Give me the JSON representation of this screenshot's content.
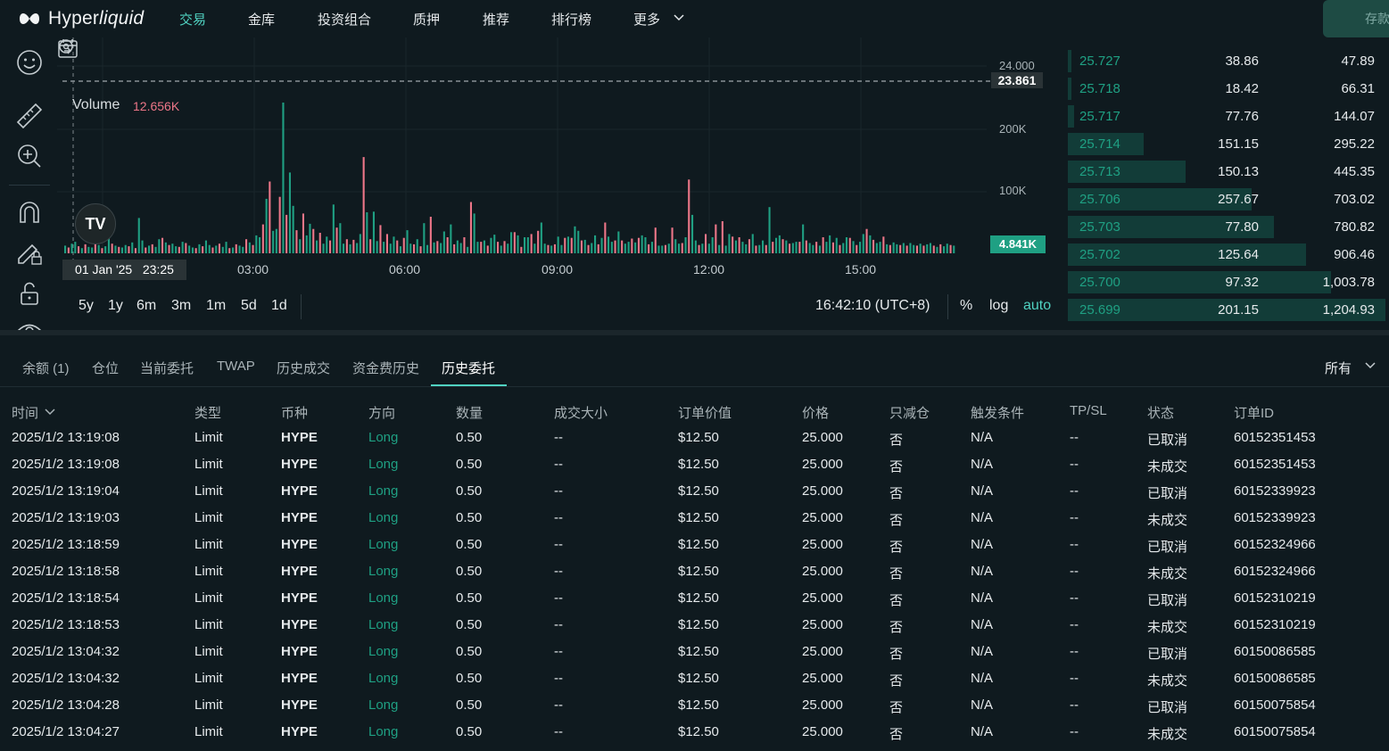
{
  "nav": {
    "logo_main": "Hyper",
    "logo_italic": "liquid",
    "items": [
      {
        "label": "交易",
        "active": true
      },
      {
        "label": "金库"
      },
      {
        "label": "投资组合"
      },
      {
        "label": "质押"
      },
      {
        "label": "推荐"
      },
      {
        "label": "排行榜"
      },
      {
        "label": "更多"
      }
    ],
    "deposit_label": "存款"
  },
  "toolbar": {
    "icons": [
      "smiley-icon",
      "ruler-icon",
      "zoom-in-icon",
      "magnet-icon",
      "pencil-lock-icon",
      "unlock-icon",
      "eye-icon"
    ]
  },
  "chart": {
    "volume_label": "Volume",
    "volume_value": "12.656K",
    "current_price": "23.861",
    "price_top_label": "24.000",
    "y_labels": [
      "200K",
      "100K"
    ],
    "current_volume": "4.841K",
    "x_labels": [
      "03:00",
      "06:00",
      "09:00",
      "12:00",
      "15:00"
    ],
    "crosshair_date": "01 Jan '25",
    "crosshair_time": "23:25",
    "ranges": [
      "5y",
      "1y",
      "6m",
      "3m",
      "1m",
      "5d",
      "1d"
    ],
    "clock": "16:42:10 (UTC+8)",
    "options": {
      "percent": "%",
      "log": "log",
      "auto": "auto"
    },
    "colors": {
      "up": "#1fa083",
      "down": "#ed7688"
    }
  },
  "chart_data": {
    "type": "bar",
    "title": "",
    "ylabel": "",
    "ylim": [
      0,
      240000
    ],
    "x_ticks": [
      "03:00",
      "06:00",
      "09:00",
      "12:00",
      "15:00"
    ],
    "series": [
      {
        "values": [
          12000,
          9000,
          15000,
          18000,
          11000,
          8000,
          14000,
          10000,
          9000,
          22000,
          13000,
          8000,
          11000,
          63000,
          15000,
          12000,
          10000,
          9000,
          13000,
          11000,
          17000,
          8000,
          55000,
          20000,
          9000,
          12000,
          14000,
          10000,
          22000,
          24000,
          17000,
          13000,
          15000,
          11000,
          10000,
          18000,
          16000,
          12000,
          9000,
          8000,
          14000,
          11000,
          20000,
          13000,
          9000,
          12000,
          15000,
          10000,
          18000,
          8000,
          9000,
          14000,
          12000,
          10000,
          22000,
          17000,
          13000,
          28000,
          25000,
          45000,
          85000,
          112000,
          35000,
          38000,
          88000,
          235000,
          60000,
          126000,
          74000,
          36000,
          22000,
          62000,
          28000,
          46000,
          38000,
          20000,
          32000,
          15000,
          26000,
          20000,
          76000,
          40000,
          47000,
          15000,
          22000,
          14000,
          21000,
          16000,
          30000,
          150000,
          64000,
          22000,
          65000,
          19000,
          44000,
          18000,
          30000,
          15000,
          26000,
          20000,
          11000,
          24000,
          36000,
          15000,
          14000,
          22000,
          11000,
          47000,
          13000,
          57000,
          17000,
          19000,
          16000,
          34000,
          25000,
          45000,
          14000,
          20000,
          16000,
          25000,
          10000,
          80000,
          62000,
          18000,
          18000,
          20000,
          12000,
          24000,
          29000,
          18000,
          12000,
          19000,
          15000,
          33000,
          33000,
          28000,
          10000,
          25000,
          25000,
          30000,
          15000,
          35000,
          48000,
          15000,
          13000,
          12000,
          14000,
          26000,
          13000,
          24000,
          26000,
          24000,
          42000,
          35000,
          20000,
          21000,
          13000,
          16000,
          28000,
          14000,
          24000,
          48000,
          26000,
          18000,
          20000,
          34000,
          20000,
          15000,
          18000,
          23000,
          17000,
          24000,
          28000,
          25000,
          14000,
          18000,
          40000,
          12000,
          12000,
          13000,
          15000,
          40000,
          22000,
          15000,
          16000,
          25000,
          115000,
          60000,
          20000,
          13000,
          15000,
          30000,
          15000,
          25000,
          45000,
          13000,
          50000,
          12000,
          30000,
          26000,
          20000,
          25000,
          18000,
          14000,
          22000,
          30000,
          12000,
          13000,
          20000,
          13000,
          72000,
          18000,
          24000,
          28000,
          22000,
          20000,
          15000,
          16000,
          18000,
          18000,
          45000,
          20000,
          16000,
          13000,
          18000,
          12000,
          25000,
          18000,
          28000,
          17000,
          24000,
          13000,
          16000,
          25000,
          24000,
          19000,
          13000,
          18000,
          30000,
          38000,
          28000,
          21000,
          16000,
          18000,
          26000,
          14000,
          13000,
          17000,
          14000,
          13000,
          16000,
          12000,
          16000,
          13000,
          12000,
          15000,
          12000,
          14000,
          16000,
          12000,
          10000,
          14000,
          11000,
          15000,
          13000,
          12000
        ]
      }
    ]
  },
  "orderbook": {
    "rows": [
      {
        "price": "25.727",
        "size": "38.86",
        "total": "47.89",
        "depth": 0.01
      },
      {
        "price": "25.718",
        "size": "18.42",
        "total": "66.31",
        "depth": 0.01
      },
      {
        "price": "25.717",
        "size": "77.76",
        "total": "144.07",
        "depth": 0.02
      },
      {
        "price": "25.714",
        "size": "151.15",
        "total": "295.22",
        "depth": 0.24
      },
      {
        "price": "25.713",
        "size": "150.13",
        "total": "445.35",
        "depth": 0.37
      },
      {
        "price": "25.706",
        "size": "257.67",
        "total": "703.02",
        "depth": 0.58
      },
      {
        "price": "25.703",
        "size": "77.80",
        "total": "780.82",
        "depth": 0.65
      },
      {
        "price": "25.702",
        "size": "125.64",
        "total": "906.46",
        "depth": 0.75
      },
      {
        "price": "25.700",
        "size": "97.32",
        "total": "1,003.78",
        "depth": 0.83
      },
      {
        "price": "25.699",
        "size": "201.15",
        "total": "1,204.93",
        "depth": 1.0
      }
    ]
  },
  "panel": {
    "tabs": [
      "余额 (1)",
      "仓位",
      "当前委托",
      "TWAP",
      "历史成交",
      "资金费历史",
      "历史委托"
    ],
    "active_tab": "历史委托",
    "filter": "所有",
    "headers": [
      "时间",
      "类型",
      "币种",
      "方向",
      "数量",
      "成交大小",
      "订单价值",
      "价格",
      "只减仓",
      "触发条件",
      "TP/SL",
      "状态",
      "订单ID"
    ],
    "rows": [
      [
        "2025/1/2 13:19:08",
        "Limit",
        "HYPE",
        "Long",
        "0.50",
        "--",
        "$12.50",
        "25.000",
        "否",
        "N/A",
        "--",
        "已取消",
        "60152351453"
      ],
      [
        "2025/1/2 13:19:08",
        "Limit",
        "HYPE",
        "Long",
        "0.50",
        "--",
        "$12.50",
        "25.000",
        "否",
        "N/A",
        "--",
        "未成交",
        "60152351453"
      ],
      [
        "2025/1/2 13:19:04",
        "Limit",
        "HYPE",
        "Long",
        "0.50",
        "--",
        "$12.50",
        "25.000",
        "否",
        "N/A",
        "--",
        "已取消",
        "60152339923"
      ],
      [
        "2025/1/2 13:19:03",
        "Limit",
        "HYPE",
        "Long",
        "0.50",
        "--",
        "$12.50",
        "25.000",
        "否",
        "N/A",
        "--",
        "未成交",
        "60152339923"
      ],
      [
        "2025/1/2 13:18:59",
        "Limit",
        "HYPE",
        "Long",
        "0.50",
        "--",
        "$12.50",
        "25.000",
        "否",
        "N/A",
        "--",
        "已取消",
        "60152324966"
      ],
      [
        "2025/1/2 13:18:58",
        "Limit",
        "HYPE",
        "Long",
        "0.50",
        "--",
        "$12.50",
        "25.000",
        "否",
        "N/A",
        "--",
        "未成交",
        "60152324966"
      ],
      [
        "2025/1/2 13:18:54",
        "Limit",
        "HYPE",
        "Long",
        "0.50",
        "--",
        "$12.50",
        "25.000",
        "否",
        "N/A",
        "--",
        "已取消",
        "60152310219"
      ],
      [
        "2025/1/2 13:18:53",
        "Limit",
        "HYPE",
        "Long",
        "0.50",
        "--",
        "$12.50",
        "25.000",
        "否",
        "N/A",
        "--",
        "未成交",
        "60152310219"
      ],
      [
        "2025/1/2 13:04:32",
        "Limit",
        "HYPE",
        "Long",
        "0.50",
        "--",
        "$12.50",
        "25.000",
        "否",
        "N/A",
        "--",
        "已取消",
        "60150086585"
      ],
      [
        "2025/1/2 13:04:32",
        "Limit",
        "HYPE",
        "Long",
        "0.50",
        "--",
        "$12.50",
        "25.000",
        "否",
        "N/A",
        "--",
        "未成交",
        "60150086585"
      ],
      [
        "2025/1/2 13:04:28",
        "Limit",
        "HYPE",
        "Long",
        "0.50",
        "--",
        "$12.50",
        "25.000",
        "否",
        "N/A",
        "--",
        "已取消",
        "60150075854"
      ],
      [
        "2025/1/2 13:04:27",
        "Limit",
        "HYPE",
        "Long",
        "0.50",
        "--",
        "$12.50",
        "25.000",
        "否",
        "N/A",
        "--",
        "未成交",
        "60150075854"
      ]
    ]
  }
}
